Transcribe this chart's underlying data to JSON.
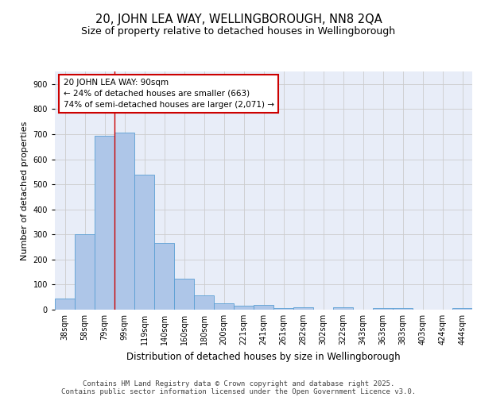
{
  "title1": "20, JOHN LEA WAY, WELLINGBOROUGH, NN8 2QA",
  "title2": "Size of property relative to detached houses in Wellingborough",
  "xlabel": "Distribution of detached houses by size in Wellingborough",
  "ylabel": "Number of detached properties",
  "categories": [
    "38sqm",
    "58sqm",
    "79sqm",
    "99sqm",
    "119sqm",
    "140sqm",
    "160sqm",
    "180sqm",
    "200sqm",
    "221sqm",
    "241sqm",
    "261sqm",
    "282sqm",
    "302sqm",
    "322sqm",
    "343sqm",
    "363sqm",
    "383sqm",
    "403sqm",
    "424sqm",
    "444sqm"
  ],
  "values": [
    45,
    300,
    695,
    707,
    538,
    265,
    122,
    57,
    25,
    15,
    18,
    7,
    10,
    0,
    10,
    0,
    5,
    5,
    0,
    0,
    7
  ],
  "bar_color": "#aec6e8",
  "bar_edge_color": "#5a9fd4",
  "grid_color": "#cccccc",
  "annotation_box_color": "#cc0000",
  "vline_color": "#cc0000",
  "annotation_line1": "20 JOHN LEA WAY: 90sqm",
  "annotation_line2": "← 24% of detached houses are smaller (663)",
  "annotation_line3": "74% of semi-detached houses are larger (2,071) →",
  "background_color": "#e8edf8",
  "footer_line1": "Contains HM Land Registry data © Crown copyright and database right 2025.",
  "footer_line2": "Contains public sector information licensed under the Open Government Licence v3.0.",
  "ylim": [
    0,
    950
  ],
  "yticks": [
    0,
    100,
    200,
    300,
    400,
    500,
    600,
    700,
    800,
    900
  ],
  "title1_fontsize": 10.5,
  "title2_fontsize": 9,
  "ylabel_fontsize": 8,
  "xlabel_fontsize": 8.5,
  "tick_fontsize": 7,
  "annotation_fontsize": 7.5,
  "footer_fontsize": 6.5
}
